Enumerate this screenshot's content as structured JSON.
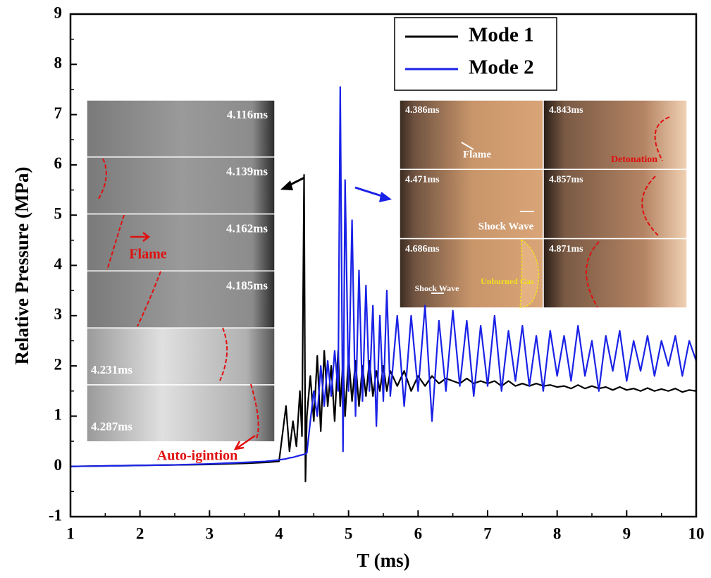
{
  "chart_data": {
    "type": "line",
    "x_label": "T (ms)",
    "y_label": "Relative Pressure (MPa)",
    "xlim": [
      1,
      10
    ],
    "ylim": [
      -1,
      9
    ],
    "xticks": [
      1,
      2,
      3,
      4,
      5,
      6,
      7,
      8,
      9,
      10
    ],
    "yticks": [
      -1,
      0,
      1,
      2,
      3,
      4,
      5,
      6,
      7,
      8,
      9
    ],
    "legend": "upper right",
    "x": [
      1.0,
      1.5,
      2.0,
      2.5,
      3.0,
      3.5,
      3.8,
      4.0,
      4.1,
      4.15,
      4.2,
      4.25,
      4.3,
      4.33,
      4.36,
      4.38,
      4.4,
      4.45,
      4.5,
      4.55,
      4.6,
      4.65,
      4.7,
      4.75,
      4.8,
      4.85,
      4.88,
      4.92,
      4.95,
      5.0,
      5.05,
      5.1,
      5.15,
      5.2,
      5.25,
      5.3,
      5.35,
      5.4,
      5.45,
      5.5,
      5.55,
      5.6,
      5.7,
      5.8,
      5.9,
      6.0,
      6.1,
      6.2,
      6.3,
      6.4,
      6.5,
      6.6,
      6.7,
      6.8,
      6.9,
      7.0,
      7.1,
      7.2,
      7.3,
      7.4,
      7.5,
      7.6,
      7.7,
      7.8,
      7.9,
      8.0,
      8.1,
      8.2,
      8.3,
      8.4,
      8.5,
      8.6,
      8.7,
      8.8,
      8.9,
      9.0,
      9.1,
      9.2,
      9.3,
      9.4,
      9.5,
      9.6,
      9.7,
      9.8,
      9.9,
      10.0
    ],
    "series": [
      {
        "name": "Mode 1",
        "color": "#000000",
        "values": [
          0.0,
          0.01,
          0.02,
          0.03,
          0.04,
          0.06,
          0.08,
          0.1,
          1.2,
          0.3,
          0.9,
          0.4,
          1.5,
          0.6,
          5.8,
          -0.3,
          1.0,
          1.8,
          0.9,
          2.2,
          0.7,
          2.3,
          1.2,
          2.0,
          0.9,
          2.3,
          1.2,
          2.1,
          1.0,
          2.2,
          1.3,
          2.1,
          1.2,
          2.0,
          1.4,
          2.1,
          1.4,
          1.9,
          1.5,
          2.0,
          1.5,
          1.9,
          1.6,
          1.9,
          1.5,
          1.8,
          1.6,
          1.8,
          1.65,
          1.75,
          1.7,
          1.65,
          1.75,
          1.65,
          1.7,
          1.65,
          1.7,
          1.6,
          1.7,
          1.6,
          1.65,
          1.6,
          1.65,
          1.6,
          1.62,
          1.58,
          1.6,
          1.55,
          1.62,
          1.55,
          1.6,
          1.55,
          1.58,
          1.52,
          1.58,
          1.52,
          1.55,
          1.5,
          1.56,
          1.5,
          1.54,
          1.5,
          1.55,
          1.48,
          1.52,
          1.5
        ]
      },
      {
        "name": "Mode 2",
        "color": "#1a22e6",
        "values": [
          0.0,
          0.01,
          0.02,
          0.03,
          0.05,
          0.08,
          0.1,
          0.13,
          0.15,
          0.17,
          0.18,
          0.2,
          0.22,
          0.23,
          0.24,
          0.25,
          0.27,
          0.9,
          1.5,
          1.0,
          2.0,
          1.2,
          2.1,
          1.4,
          2.3,
          1.5,
          7.55,
          0.3,
          5.7,
          1.5,
          4.9,
          1.0,
          3.9,
          1.3,
          3.6,
          1.5,
          3.2,
          0.8,
          3.0,
          1.3,
          3.5,
          1.4,
          3.0,
          1.2,
          3.0,
          1.5,
          3.2,
          0.9,
          2.9,
          1.5,
          3.1,
          1.6,
          2.9,
          1.4,
          2.8,
          1.6,
          3.0,
          1.5,
          2.7,
          1.7,
          2.8,
          1.6,
          2.6,
          1.5,
          2.7,
          1.8,
          2.6,
          1.7,
          2.8,
          1.8,
          2.5,
          1.5,
          2.6,
          1.9,
          2.7,
          1.7,
          2.5,
          1.9,
          2.6,
          1.8,
          2.5,
          2.0,
          2.6,
          1.8,
          2.5,
          2.1
        ]
      }
    ],
    "left_frames": [
      "4.116ms",
      "4.139ms",
      "4.162ms",
      "4.185ms",
      "4.231ms",
      "4.287ms"
    ],
    "right_frames": [
      "4.386ms",
      "4.843ms",
      "4.471ms",
      "4.857ms",
      "4.686ms",
      "4.871ms"
    ],
    "annotations": [
      "Flame",
      "Auto-igintion",
      "Flame",
      "Shock Wave",
      "Shock Wave",
      "Unburned Gas",
      "Detonation"
    ]
  }
}
